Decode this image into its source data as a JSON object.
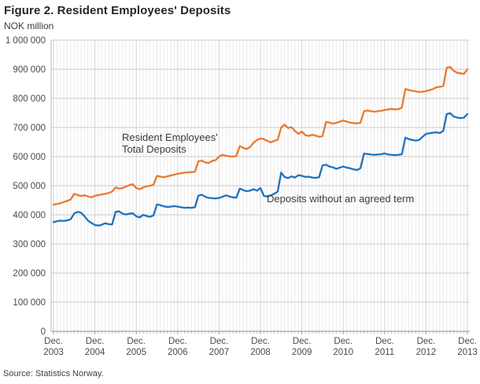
{
  "header": {
    "title": "Figure 2. Resident Employees' Deposits",
    "unit_label": "NOK million"
  },
  "footer": {
    "source": "Source: Statistics Norway."
  },
  "colors": {
    "total_deposits_line": "#ea7a2e",
    "no_agreed_term_line": "#1f72c0",
    "h_gridline": "#cbcbcb",
    "year_gridline": "#d2d2d2",
    "month_gridline": "#ebebeb",
    "axis_line": "#8f8f8f",
    "tick_text": "#4a4a4a"
  },
  "chart_data": {
    "type": "line",
    "title": "Figure 2. Resident Employees' Deposits",
    "ylabel": "NOK million",
    "x_interval": "monthly",
    "x_range": [
      "Dec 2003",
      "Dec 2013"
    ],
    "legend_position": "inline-annotations",
    "grid": {
      "horizontal": true,
      "vertical_monthly": true,
      "vertical_yearly": true
    },
    "x_tick_labels": [
      {
        "line1": "Dec.",
        "line2": "2003"
      },
      {
        "line1": "Dec.",
        "line2": "2004"
      },
      {
        "line1": "Dec.",
        "line2": "2005"
      },
      {
        "line1": "Dec.",
        "line2": "2006"
      },
      {
        "line1": "Dec.",
        "line2": "2007"
      },
      {
        "line1": "Dec.",
        "line2": "2008"
      },
      {
        "line1": "Dec.",
        "line2": "2009"
      },
      {
        "line1": "Dec.",
        "line2": "2010"
      },
      {
        "line1": "Dec.",
        "line2": "2011"
      },
      {
        "line1": "Dec.",
        "line2": "2012"
      },
      {
        "line1": "Dec.",
        "line2": "2013"
      }
    ],
    "y_axis": {
      "min": 0,
      "max": 1000000,
      "step": 100000,
      "tick_labels": [
        "0",
        "100 000",
        "200 000",
        "300 000",
        "400 000",
        "500 000",
        "600 000",
        "700 000",
        "800 000",
        "900 000",
        "1 000 000"
      ]
    },
    "series": [
      {
        "name": "Resident Employees' Total Deposits",
        "label_lines": [
          "Resident Employees'",
          "Total Deposits"
        ],
        "color": "#ea7a2e",
        "values": [
          435000,
          437000,
          440000,
          444000,
          448000,
          453000,
          472000,
          468000,
          465000,
          467000,
          463000,
          460000,
          465000,
          468000,
          470000,
          472000,
          475000,
          480000,
          494000,
          490000,
          492000,
          497000,
          502000,
          505000,
          492000,
          488000,
          494000,
          498000,
          500000,
          503000,
          534000,
          531000,
          529000,
          532000,
          535000,
          538000,
          541000,
          543000,
          545000,
          546000,
          547000,
          548000,
          584000,
          586000,
          580000,
          578000,
          585000,
          588000,
          600000,
          606000,
          603000,
          601000,
          600000,
          602000,
          636000,
          630000,
          626000,
          633000,
          648000,
          657000,
          662000,
          660000,
          654000,
          649000,
          654000,
          658000,
          700000,
          710000,
          698000,
          701000,
          688000,
          678000,
          686000,
          674000,
          671000,
          675000,
          672000,
          668000,
          670000,
          719000,
          717000,
          713000,
          716000,
          720000,
          724000,
          720000,
          717000,
          715000,
          714000,
          716000,
          756000,
          758000,
          756000,
          754000,
          756000,
          757000,
          760000,
          762000,
          764000,
          762000,
          763000,
          768000,
          832000,
          829000,
          826000,
          824000,
          822000,
          823000,
          825000,
          828000,
          832000,
          838000,
          840000,
          842000,
          905000,
          908000,
          895000,
          888000,
          886000,
          884000,
          900000
        ]
      },
      {
        "name": "Deposits without an agreed term",
        "label_lines": [
          "Deposits without an agreed term"
        ],
        "color": "#1f72c0",
        "values": [
          375000,
          378000,
          380000,
          379000,
          381000,
          385000,
          405000,
          410000,
          407000,
          395000,
          380000,
          372000,
          365000,
          363000,
          366000,
          371000,
          368000,
          367000,
          410000,
          412000,
          404000,
          401000,
          404000,
          405000,
          395000,
          391000,
          400000,
          396000,
          393000,
          398000,
          436000,
          433000,
          429000,
          427000,
          428000,
          430000,
          428000,
          426000,
          424000,
          425000,
          424000,
          426000,
          466000,
          469000,
          462000,
          458000,
          457000,
          456000,
          458000,
          462000,
          467000,
          463000,
          460000,
          459000,
          490000,
          485000,
          481000,
          483000,
          488000,
          483000,
          492000,
          465000,
          463000,
          467000,
          472000,
          480000,
          545000,
          530000,
          526000,
          532000,
          528000,
          536000,
          534000,
          530000,
          531000,
          528000,
          527000,
          529000,
          570000,
          572000,
          566000,
          563000,
          558000,
          562000,
          566000,
          562000,
          560000,
          556000,
          554000,
          560000,
          610000,
          609000,
          607000,
          606000,
          607000,
          608000,
          611000,
          607000,
          606000,
          605000,
          606000,
          608000,
          665000,
          660000,
          657000,
          655000,
          657000,
          668000,
          678000,
          680000,
          682000,
          683000,
          681000,
          688000,
          746000,
          749000,
          738000,
          734000,
          732000,
          734000,
          746000
        ]
      }
    ]
  }
}
